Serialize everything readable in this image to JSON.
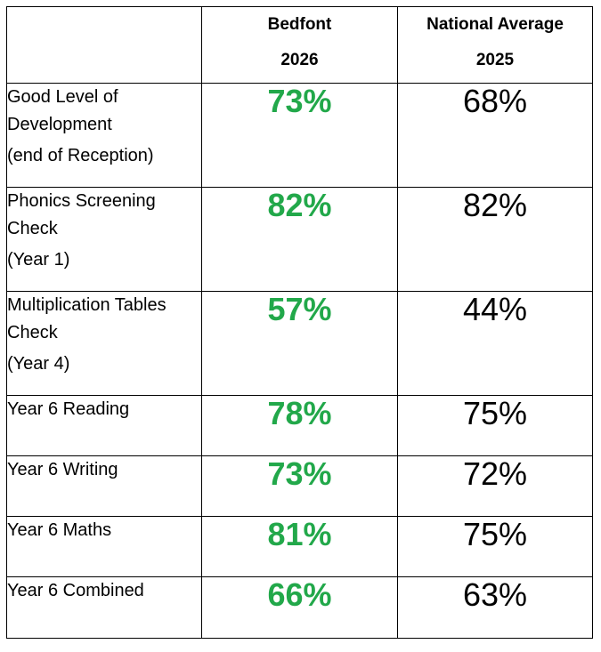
{
  "table": {
    "header": {
      "school_name": "Bedfont",
      "school_year": "2026",
      "national_name": "National Average",
      "national_year": "2025"
    },
    "accent_color": "#22a84a",
    "rows": [
      {
        "label": "Good Level of Development",
        "sublabel": "(end of Reception)",
        "school": "73%",
        "national": "68%"
      },
      {
        "label": "Phonics Screening Check",
        "sublabel": "(Year 1)",
        "school": "82%",
        "national": "82%"
      },
      {
        "label": "Multiplication Tables Check",
        "sublabel": "(Year 4)",
        "school": "57%",
        "national": "44%"
      },
      {
        "label": "Year 6 Reading",
        "school": "78%",
        "national": "75%"
      },
      {
        "label": "Year 6 Writing",
        "school": "73%",
        "national": "72%"
      },
      {
        "label": "Year 6 Maths",
        "school": "81%",
        "national": "75%"
      },
      {
        "label": "Year 6 Combined",
        "school": "66%",
        "national": "63%"
      }
    ]
  }
}
